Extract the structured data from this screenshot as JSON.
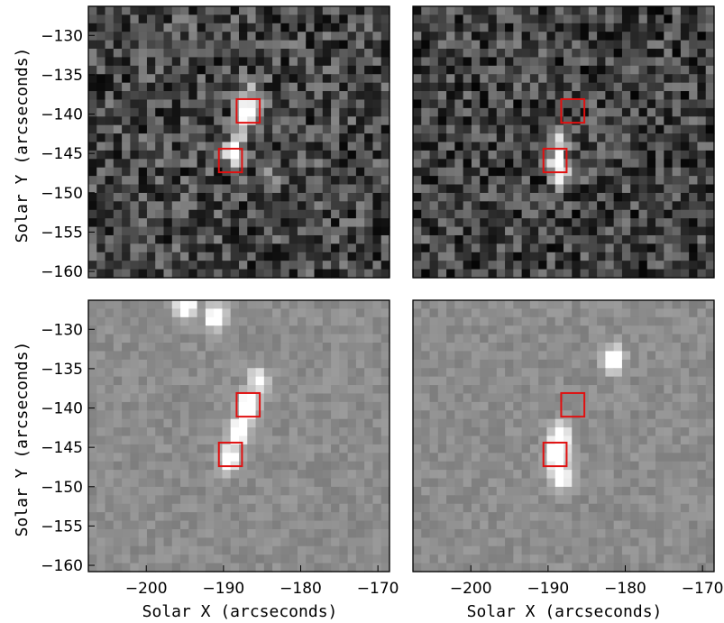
{
  "figure": {
    "xlabel": "Solar X (arcseconds)",
    "ylabel": "Solar Y (arcseconds)",
    "colors": {
      "box": "#e01010",
      "frame": "#000000"
    }
  },
  "chart_data": [
    {
      "type": "heatmap",
      "panel": "top-left",
      "colormap": "gray",
      "xlim": [
        -207.5,
        -168.5
      ],
      "ylim": [
        -160.8,
        -126.3
      ],
      "yticks": [
        -130,
        -135,
        -140,
        -145,
        -150,
        -155,
        -160
      ],
      "xticks": [],
      "ylabel": "Solar Y (arcseconds)",
      "xlabel": "",
      "background_level": 0.28,
      "noise_level": 0.5,
      "bright_features": [
        {
          "x": -187,
          "y": -139.8,
          "intensity": 1.0
        },
        {
          "x": -188.8,
          "y": -144.8,
          "intensity": 0.95
        },
        {
          "x": -187.8,
          "y": -142.5,
          "intensity": 0.55
        },
        {
          "x": -186,
          "y": -137,
          "intensity": 0.4
        },
        {
          "x": -184,
          "y": -148,
          "intensity": 0.3
        }
      ],
      "boxes": [
        {
          "x_center": -186.8,
          "y_center": -139.6,
          "size": 3
        },
        {
          "x_center": -189.1,
          "y_center": -145.9,
          "size": 3
        }
      ]
    },
    {
      "type": "heatmap",
      "panel": "top-right",
      "colormap": "gray",
      "xlim": [
        -207.5,
        -168.5
      ],
      "ylim": [
        -160.8,
        -126.3
      ],
      "yticks": [],
      "xticks": [],
      "background_level": 0.26,
      "noise_level": 0.5,
      "bright_features": [
        {
          "x": -188.8,
          "y": -146.2,
          "intensity": 1.0
        },
        {
          "x": -188.4,
          "y": -143.5,
          "intensity": 0.55
        },
        {
          "x": -188.2,
          "y": -148.5,
          "intensity": 0.45
        }
      ],
      "boxes": [
        {
          "x_center": -186.8,
          "y_center": -139.6,
          "size": 3
        },
        {
          "x_center": -189.1,
          "y_center": -145.9,
          "size": 3
        }
      ]
    },
    {
      "type": "heatmap",
      "panel": "bottom-left",
      "colormap": "gray",
      "xlim": [
        -207.5,
        -168.5
      ],
      "ylim": [
        -160.8,
        -126.3
      ],
      "yticks": [
        -130,
        -135,
        -140,
        -145,
        -150,
        -155,
        -160
      ],
      "xticks": [
        -200,
        -190,
        -180,
        -170
      ],
      "ylabel": "Solar Y (arcseconds)",
      "xlabel": "Solar X (arcseconds)",
      "background_level": 0.55,
      "noise_level": 0.12,
      "bright_features": [
        {
          "x": -186.8,
          "y": -139.8,
          "intensity": 1.0
        },
        {
          "x": -188.0,
          "y": -143.0,
          "intensity": 0.85
        },
        {
          "x": -189.3,
          "y": -146.5,
          "intensity": 0.8
        },
        {
          "x": -195,
          "y": -126.8,
          "intensity": 0.85
        },
        {
          "x": -191,
          "y": -128.5,
          "intensity": 0.8
        },
        {
          "x": -185.5,
          "y": -136.5,
          "intensity": 0.55
        }
      ],
      "boxes": [
        {
          "x_center": -186.8,
          "y_center": -139.6,
          "size": 3
        },
        {
          "x_center": -189.1,
          "y_center": -145.9,
          "size": 3
        }
      ]
    },
    {
      "type": "heatmap",
      "panel": "bottom-right",
      "colormap": "gray",
      "xlim": [
        -207.5,
        -168.5
      ],
      "ylim": [
        -160.8,
        -126.3
      ],
      "yticks": [],
      "xticks": [
        -200,
        -190,
        -180,
        -170
      ],
      "xlabel": "Solar X (arcseconds)",
      "background_level": 0.55,
      "noise_level": 0.12,
      "bright_features": [
        {
          "x": -188.8,
          "y": -146.0,
          "intensity": 1.0
        },
        {
          "x": -188.5,
          "y": -143.5,
          "intensity": 0.7
        },
        {
          "x": -188.3,
          "y": -148.8,
          "intensity": 0.75
        },
        {
          "x": -181.5,
          "y": -133.8,
          "intensity": 0.75
        }
      ],
      "boxes": [
        {
          "x_center": -186.8,
          "y_center": -139.6,
          "size": 3
        },
        {
          "x_center": -189.1,
          "y_center": -145.9,
          "size": 3
        }
      ]
    }
  ]
}
